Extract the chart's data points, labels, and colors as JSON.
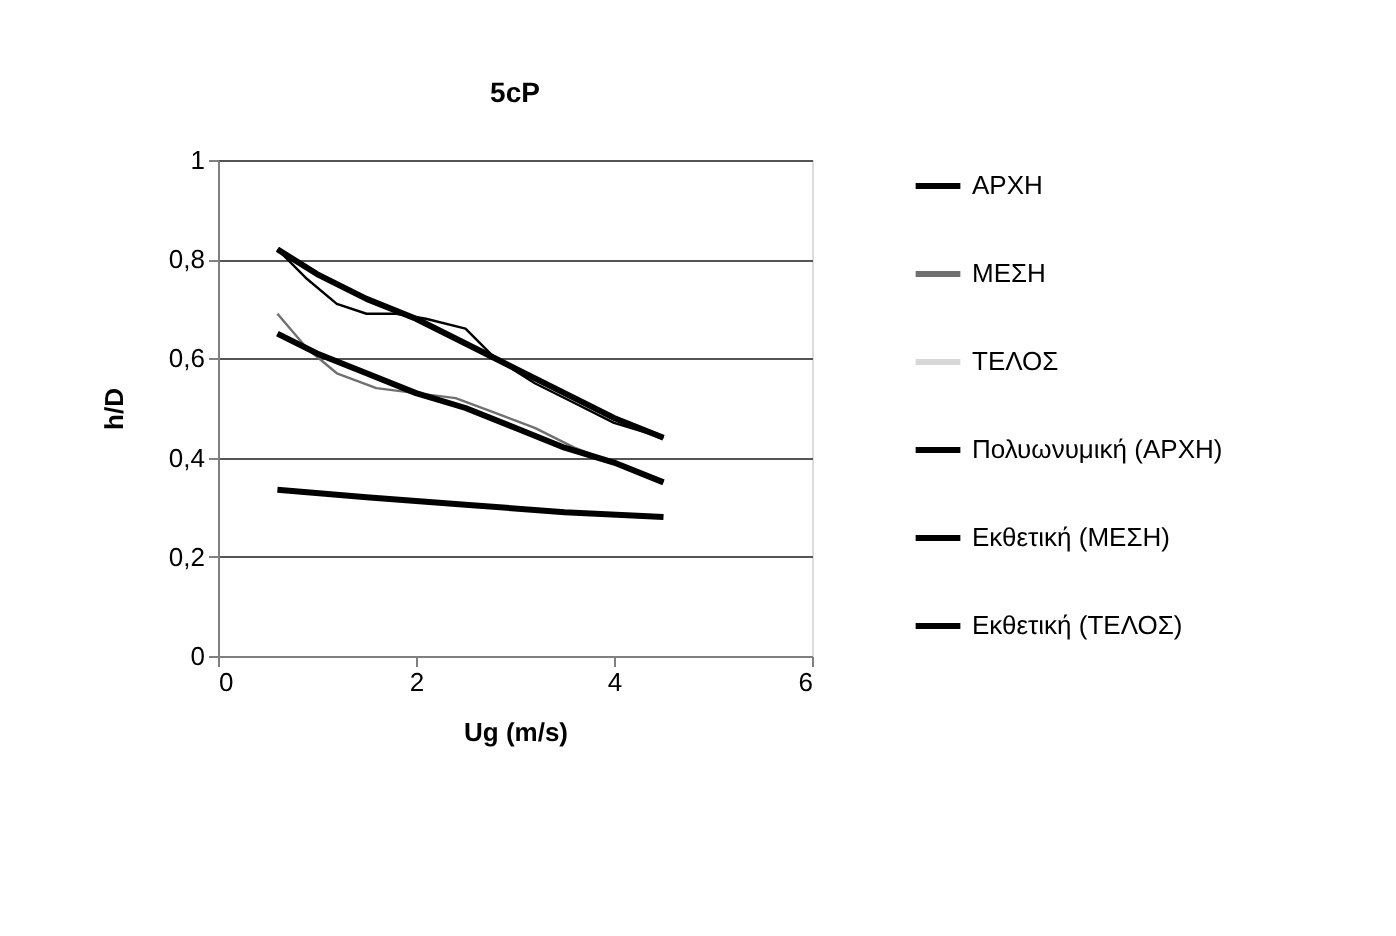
{
  "chart_data": {
    "type": "line",
    "title": "5cP",
    "xlabel": "Ug (m/s)",
    "ylabel": "h/D",
    "xlim": [
      0,
      6
    ],
    "xticks": [
      0,
      2,
      4,
      6
    ],
    "ylim": [
      0,
      1
    ],
    "yticks": [
      {
        "value": 0,
        "label": "0"
      },
      {
        "value": 0.2,
        "label": "0,2"
      },
      {
        "value": 0.4,
        "label": "0,4"
      },
      {
        "value": 0.6,
        "label": "0,6"
      },
      {
        "value": 0.8,
        "label": "0,8"
      },
      {
        "value": 1,
        "label": "1"
      }
    ],
    "grid": "y",
    "legend": "right",
    "marker": "none",
    "line_style": "solid",
    "series": [
      {
        "name": "ΑΡΧΗ",
        "color": "#000000",
        "x": [
          0.6,
          0.9,
          1.2,
          1.5,
          1.8,
          2.1,
          2.5,
          2.8,
          3.2,
          3.6,
          4.0,
          4.5
        ],
        "values": [
          0.82,
          0.76,
          0.71,
          0.69,
          0.69,
          0.68,
          0.66,
          0.6,
          0.55,
          0.51,
          0.47,
          0.44
        ]
      },
      {
        "name": "ΜΕΣΗ",
        "color": "#707070",
        "x": [
          0.6,
          0.9,
          1.2,
          1.6,
          2.0,
          2.4,
          2.8,
          3.2,
          3.6,
          4.0,
          4.5
        ],
        "values": [
          0.69,
          0.62,
          0.57,
          0.54,
          0.53,
          0.52,
          0.49,
          0.46,
          0.42,
          0.39,
          0.35
        ]
      },
      {
        "name": "ΤΕΛΟΣ",
        "color": "#d8d8d8"
      },
      {
        "name": "Πολυωνυμική (ΑΡΧΗ)",
        "color": "#000000",
        "x": [
          0.6,
          1.0,
          1.5,
          2.0,
          2.5,
          3.0,
          3.5,
          4.0,
          4.5
        ],
        "values": [
          0.82,
          0.77,
          0.72,
          0.68,
          0.63,
          0.58,
          0.53,
          0.48,
          0.44
        ]
      },
      {
        "name": "Εκθετική (ΜΕΣΗ)",
        "color": "#000000",
        "x": [
          0.6,
          1.0,
          1.5,
          2.0,
          2.5,
          3.0,
          3.5,
          4.0,
          4.5
        ],
        "values": [
          0.65,
          0.61,
          0.57,
          0.53,
          0.5,
          0.46,
          0.42,
          0.39,
          0.35
        ]
      },
      {
        "name": "Εκθετική (ΤΕΛΟΣ)",
        "color": "#000000",
        "x": [
          0.6,
          1.5,
          2.5,
          3.5,
          4.5
        ],
        "values": [
          0.335,
          0.32,
          0.305,
          0.29,
          0.28
        ]
      }
    ]
  }
}
